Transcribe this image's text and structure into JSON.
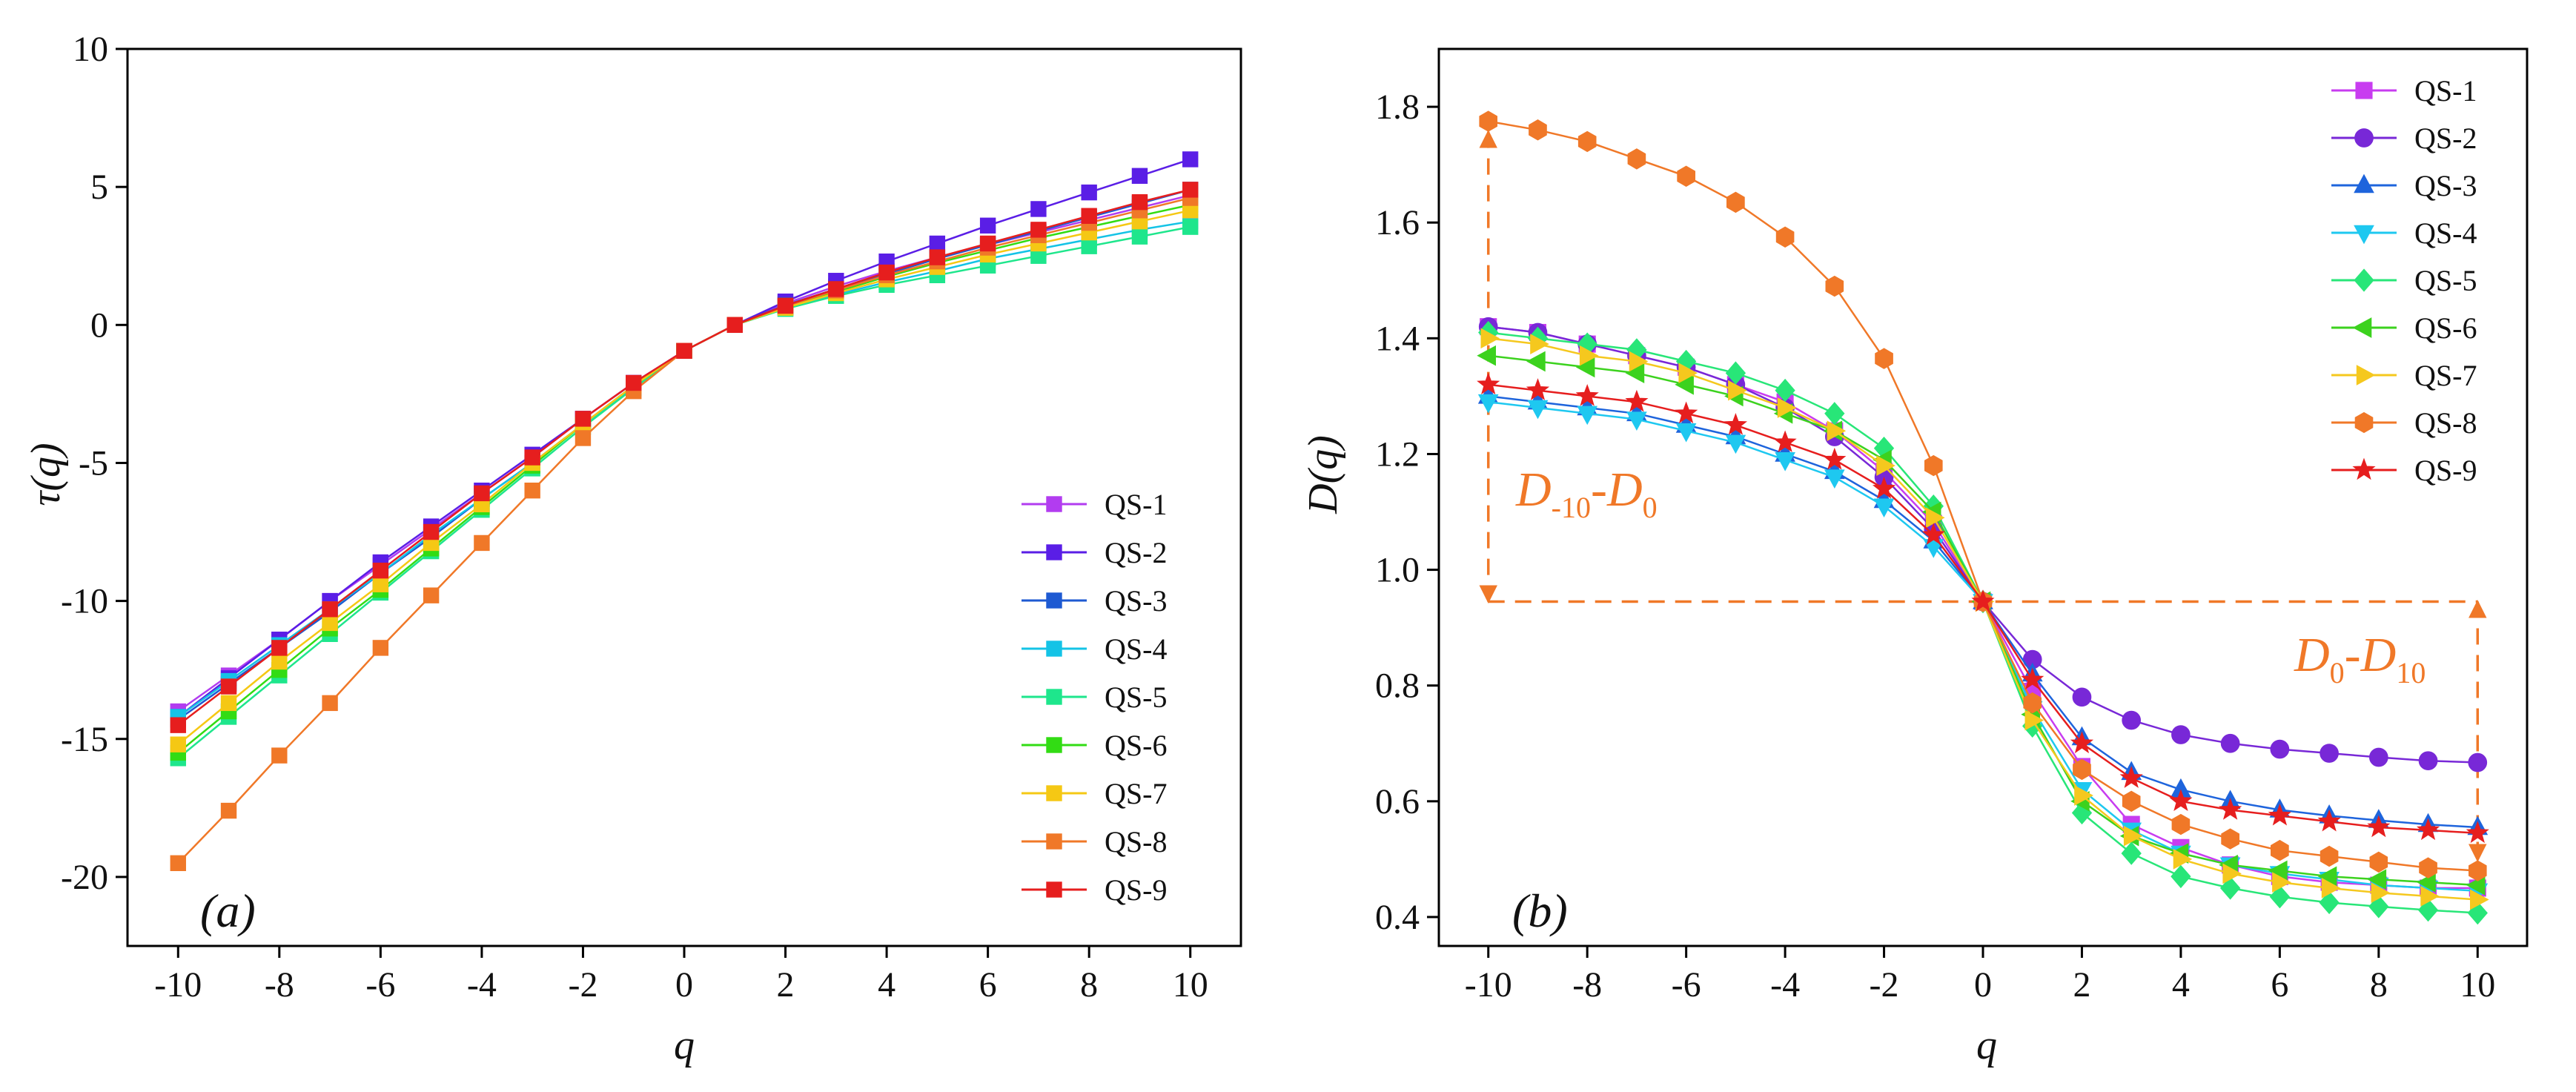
{
  "figure": {
    "q_values": [
      -10,
      -9,
      -8,
      -7,
      -6,
      -5,
      -4,
      -3,
      -2,
      -1,
      0,
      1,
      2,
      3,
      4,
      5,
      6,
      7,
      8,
      9,
      10
    ]
  },
  "chart_data": [
    {
      "type": "line",
      "panel_label": "(a)",
      "xlabel": "q",
      "ylabel": "τ(q)",
      "xlim": [
        -11,
        11
      ],
      "ylim": [
        -22.5,
        10
      ],
      "xticks": [
        -10,
        -8,
        -6,
        -4,
        -2,
        0,
        2,
        4,
        6,
        8,
        10
      ],
      "xtick_labels": [
        "-10",
        "-8",
        "-6",
        "-4",
        "-2",
        "0",
        "2",
        "4",
        "6",
        "8",
        "10"
      ],
      "yticks": [
        -20,
        -15,
        -10,
        -5,
        0,
        5,
        10
      ],
      "ytick_labels": [
        "-20",
        "-15",
        "-10",
        "-5",
        "0",
        "5",
        "10"
      ],
      "grid": false,
      "legend_position": "bottom-right",
      "marker": "square",
      "x": [
        -10,
        -9,
        -8,
        -7,
        -6,
        -5,
        -4,
        -3,
        -2,
        -1,
        0,
        1,
        2,
        3,
        4,
        5,
        6,
        7,
        8,
        9,
        10
      ],
      "series": [
        {
          "name": "QS-1",
          "color": "#b23cf0",
          "values": [
            -14.0,
            -12.7,
            -11.4,
            -10.0,
            -8.7,
            -7.4,
            -6.1,
            -4.8,
            -3.4,
            -2.1,
            -0.94,
            0.0,
            0.78,
            1.4,
            1.95,
            2.45,
            2.9,
            3.35,
            3.8,
            4.25,
            4.7
          ]
        },
        {
          "name": "QS-2",
          "color": "#5a1ee6",
          "values": [
            -14.2,
            -12.8,
            -11.4,
            -10.0,
            -8.6,
            -7.3,
            -6.0,
            -4.7,
            -3.4,
            -2.1,
            -0.94,
            0.0,
            0.85,
            1.6,
            2.3,
            2.95,
            3.6,
            4.2,
            4.8,
            5.4,
            6.0
          ]
        },
        {
          "name": "QS-3",
          "color": "#1e5ad2",
          "values": [
            -14.3,
            -13.0,
            -11.7,
            -10.4,
            -9.0,
            -7.7,
            -6.3,
            -5.0,
            -3.6,
            -2.2,
            -0.94,
            0.0,
            0.72,
            1.3,
            1.85,
            2.4,
            2.9,
            3.4,
            3.9,
            4.4,
            4.9
          ]
        },
        {
          "name": "QS-4",
          "color": "#14c3e6",
          "values": [
            -14.2,
            -12.9,
            -11.6,
            -10.3,
            -9.0,
            -7.6,
            -6.3,
            -5.0,
            -3.6,
            -2.3,
            -0.94,
            0.0,
            0.6,
            1.1,
            1.55,
            1.95,
            2.4,
            2.75,
            3.1,
            3.45,
            3.75
          ]
        },
        {
          "name": "QS-5",
          "color": "#1ee68c",
          "values": [
            -15.7,
            -14.2,
            -12.7,
            -11.2,
            -9.7,
            -8.2,
            -6.7,
            -5.2,
            -3.7,
            -2.3,
            -0.94,
            0.0,
            0.58,
            1.05,
            1.45,
            1.8,
            2.15,
            2.5,
            2.85,
            3.2,
            3.55
          ]
        },
        {
          "name": "QS-6",
          "color": "#32dc14",
          "values": [
            -15.5,
            -14.0,
            -12.5,
            -11.0,
            -9.6,
            -8.1,
            -6.6,
            -5.1,
            -3.6,
            -2.2,
            -0.94,
            0.0,
            0.65,
            1.2,
            1.75,
            2.25,
            2.7,
            3.15,
            3.55,
            3.95,
            4.35
          ]
        },
        {
          "name": "QS-7",
          "color": "#f5c814",
          "values": [
            -15.2,
            -13.7,
            -12.2,
            -10.8,
            -9.4,
            -7.9,
            -6.5,
            -5.0,
            -3.6,
            -2.2,
            -0.94,
            0.0,
            0.62,
            1.15,
            1.65,
            2.1,
            2.55,
            2.95,
            3.35,
            3.75,
            4.15
          ]
        },
        {
          "name": "QS-8",
          "color": "#f07828",
          "values": [
            -19.5,
            -17.6,
            -15.6,
            -13.7,
            -11.7,
            -9.8,
            -7.9,
            -6.0,
            -4.1,
            -2.4,
            -0.94,
            0.0,
            0.68,
            1.25,
            1.8,
            2.3,
            2.8,
            3.25,
            3.7,
            4.15,
            4.6
          ]
        },
        {
          "name": "QS-9",
          "color": "#e61e1e",
          "values": [
            -14.5,
            -13.1,
            -11.7,
            -10.3,
            -8.9,
            -7.5,
            -6.1,
            -4.8,
            -3.4,
            -2.1,
            -0.94,
            0.0,
            0.7,
            1.3,
            1.9,
            2.45,
            2.95,
            3.45,
            3.95,
            4.45,
            4.9
          ]
        }
      ]
    },
    {
      "type": "line",
      "panel_label": "(b)",
      "xlabel": "q",
      "ylabel": "D(q)",
      "xlim": [
        -11,
        11
      ],
      "ylim": [
        0.35,
        1.9
      ],
      "xticks": [
        -10,
        -8,
        -6,
        -4,
        -2,
        0,
        2,
        4,
        6,
        8,
        10
      ],
      "xtick_labels": [
        "-10",
        "-8",
        "-6",
        "-4",
        "-2",
        "0",
        "2",
        "4",
        "6",
        "8",
        "10"
      ],
      "yticks": [
        0.4,
        0.6,
        0.8,
        1.0,
        1.2,
        1.4,
        1.6,
        1.8
      ],
      "ytick_labels": [
        "0.4",
        "0.6",
        "0.8",
        "1.0",
        "1.2",
        "1.4",
        "1.6",
        "1.8"
      ],
      "grid": false,
      "legend_position": "top-right",
      "x": [
        -10,
        -9,
        -8,
        -7,
        -6,
        -5,
        -4,
        -3,
        -2,
        -1,
        0,
        1,
        2,
        3,
        4,
        5,
        6,
        7,
        8,
        9,
        10
      ],
      "series": [
        {
          "name": "QS-1",
          "color": "#c83cf0",
          "marker": "square",
          "values": [
            1.42,
            1.41,
            1.39,
            1.37,
            1.35,
            1.32,
            1.29,
            1.24,
            1.17,
            1.08,
            0.945,
            0.79,
            0.66,
            0.56,
            0.52,
            0.49,
            0.47,
            0.46,
            0.455,
            0.45,
            0.45
          ]
        },
        {
          "name": "QS-2",
          "color": "#7828d7",
          "marker": "circle",
          "values": [
            1.42,
            1.41,
            1.39,
            1.37,
            1.35,
            1.32,
            1.28,
            1.23,
            1.16,
            1.07,
            0.945,
            0.845,
            0.78,
            0.74,
            0.715,
            0.7,
            0.69,
            0.683,
            0.676,
            0.67,
            0.667
          ]
        },
        {
          "name": "QS-3",
          "color": "#1e64dc",
          "marker": "triangle-up",
          "values": [
            1.3,
            1.29,
            1.28,
            1.27,
            1.25,
            1.23,
            1.2,
            1.17,
            1.12,
            1.05,
            0.945,
            0.82,
            0.71,
            0.65,
            0.62,
            0.6,
            0.585,
            0.575,
            0.567,
            0.56,
            0.555
          ]
        },
        {
          "name": "QS-4",
          "color": "#1ec8f0",
          "marker": "triangle-down",
          "values": [
            1.29,
            1.28,
            1.27,
            1.26,
            1.24,
            1.22,
            1.19,
            1.16,
            1.11,
            1.04,
            0.945,
            0.76,
            0.62,
            0.55,
            0.51,
            0.49,
            0.475,
            0.465,
            0.455,
            0.45,
            0.445
          ]
        },
        {
          "name": "QS-5",
          "color": "#28e678",
          "marker": "diamond",
          "values": [
            1.41,
            1.4,
            1.39,
            1.38,
            1.36,
            1.34,
            1.31,
            1.27,
            1.21,
            1.11,
            0.945,
            0.73,
            0.58,
            0.51,
            0.47,
            0.45,
            0.435,
            0.425,
            0.418,
            0.412,
            0.407
          ]
        },
        {
          "name": "QS-6",
          "color": "#3cd21e",
          "marker": "triangle-left",
          "values": [
            1.37,
            1.36,
            1.35,
            1.34,
            1.32,
            1.3,
            1.27,
            1.24,
            1.19,
            1.1,
            0.945,
            0.75,
            0.6,
            0.54,
            0.51,
            0.49,
            0.48,
            0.47,
            0.465,
            0.46,
            0.455
          ]
        },
        {
          "name": "QS-7",
          "color": "#f5c81e",
          "marker": "triangle-right",
          "values": [
            1.4,
            1.39,
            1.37,
            1.36,
            1.34,
            1.31,
            1.28,
            1.24,
            1.18,
            1.09,
            0.945,
            0.74,
            0.61,
            0.54,
            0.5,
            0.475,
            0.46,
            0.45,
            0.442,
            0.436,
            0.43
          ]
        },
        {
          "name": "QS-8",
          "color": "#f07828",
          "marker": "hexagon",
          "values": [
            1.775,
            1.76,
            1.74,
            1.71,
            1.68,
            1.635,
            1.575,
            1.49,
            1.365,
            1.18,
            0.945,
            0.77,
            0.655,
            0.6,
            0.56,
            0.535,
            0.515,
            0.505,
            0.495,
            0.485,
            0.48
          ]
        },
        {
          "name": "QS-9",
          "color": "#e61e1e",
          "marker": "star",
          "values": [
            1.32,
            1.31,
            1.3,
            1.29,
            1.27,
            1.25,
            1.22,
            1.19,
            1.14,
            1.06,
            0.945,
            0.81,
            0.7,
            0.64,
            0.6,
            0.585,
            0.575,
            0.565,
            0.555,
            0.55,
            0.545
          ]
        }
      ],
      "annotations": [
        {
          "main1": "D",
          "sub1": "-10",
          "sep": "-",
          "main2": "D",
          "sub2": "0",
          "color": "#f07828"
        },
        {
          "main1": "D",
          "sub1": "0",
          "sep": "-",
          "main2": "D",
          "sub2": "10",
          "color": "#f07828"
        }
      ]
    }
  ]
}
